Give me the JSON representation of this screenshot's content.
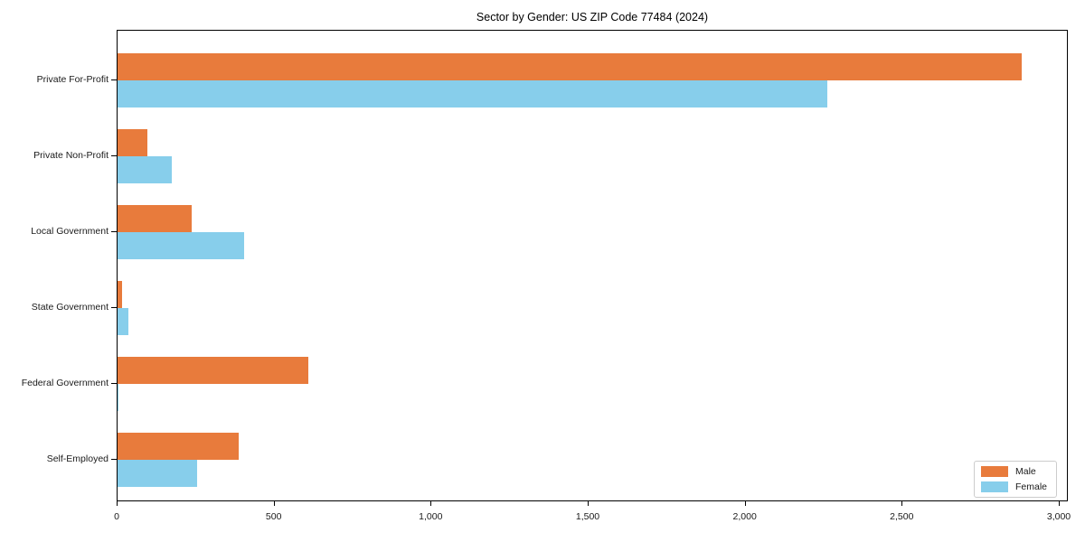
{
  "chart_data": {
    "type": "bar",
    "orientation": "horizontal",
    "title": "Sector by Gender: US ZIP Code 77484 (2024)",
    "categories": [
      "Private For-Profit",
      "Private Non-Profit",
      "Local Government",
      "State Government",
      "Federal Government",
      "Self-Employed"
    ],
    "series": [
      {
        "name": "Male",
        "color": "#e87b3c",
        "values": [
          2880,
          95,
          235,
          14,
          608,
          386
        ]
      },
      {
        "name": "Female",
        "color": "#87ceeb",
        "values": [
          2260,
          173,
          403,
          35,
          2,
          253
        ]
      }
    ],
    "xlim": [
      0,
      3000
    ],
    "xticks": [
      0,
      500,
      1000,
      1500,
      2000,
      2500,
      3000
    ],
    "xtick_labels": [
      "0",
      "500",
      "1,000",
      "1,500",
      "2,000",
      "2,500",
      "3,000"
    ],
    "xlabel": "",
    "ylabel": "",
    "grid": false,
    "legend_position": "lower right",
    "axis_color": "#000000",
    "text_color": "#1a1a1a",
    "background_color": "#ffffff"
  }
}
